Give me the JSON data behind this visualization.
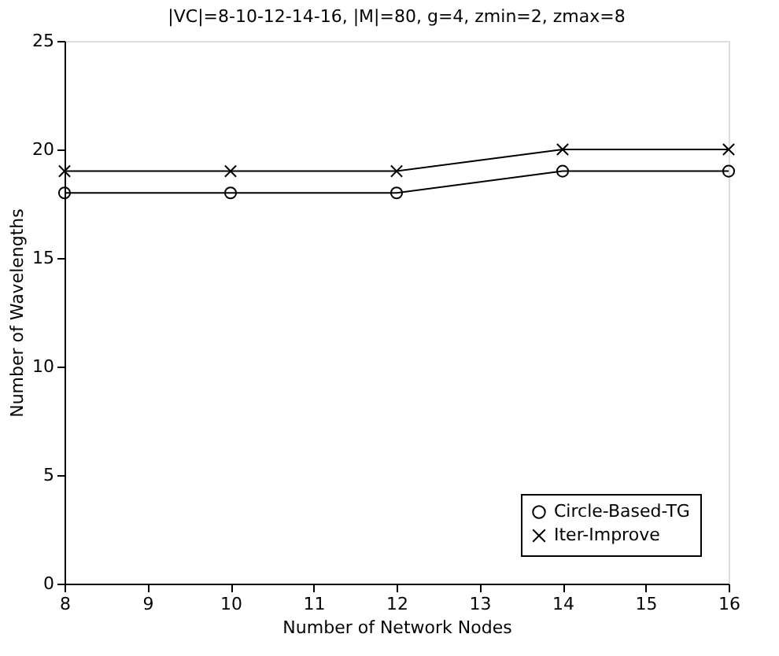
{
  "chart_data": {
    "type": "line",
    "title": "|VC|=8-10-12-14-16, |M|=80, g=4, zmin=2, zmax=8",
    "xlabel": "Number of Network Nodes",
    "ylabel": "Number of Wavelengths",
    "x": [
      8,
      10,
      12,
      14,
      16
    ],
    "series": [
      {
        "name": "Circle-Based-TG",
        "color": "#000000",
        "marker": "circle",
        "values": [
          18,
          18,
          18,
          19,
          19
        ]
      },
      {
        "name": "Iter-Improve",
        "color": "#000000",
        "marker": "cross",
        "values": [
          19,
          19,
          19,
          20,
          20
        ]
      }
    ],
    "xlim": [
      8,
      16
    ],
    "xticks": [
      8,
      9,
      10,
      11,
      12,
      13,
      14,
      15,
      16
    ],
    "ylim": [
      0,
      25
    ],
    "yticks": [
      0,
      5,
      10,
      15,
      20,
      25
    ],
    "grid": false,
    "legend": "bottom right",
    "line_style": "solid"
  }
}
